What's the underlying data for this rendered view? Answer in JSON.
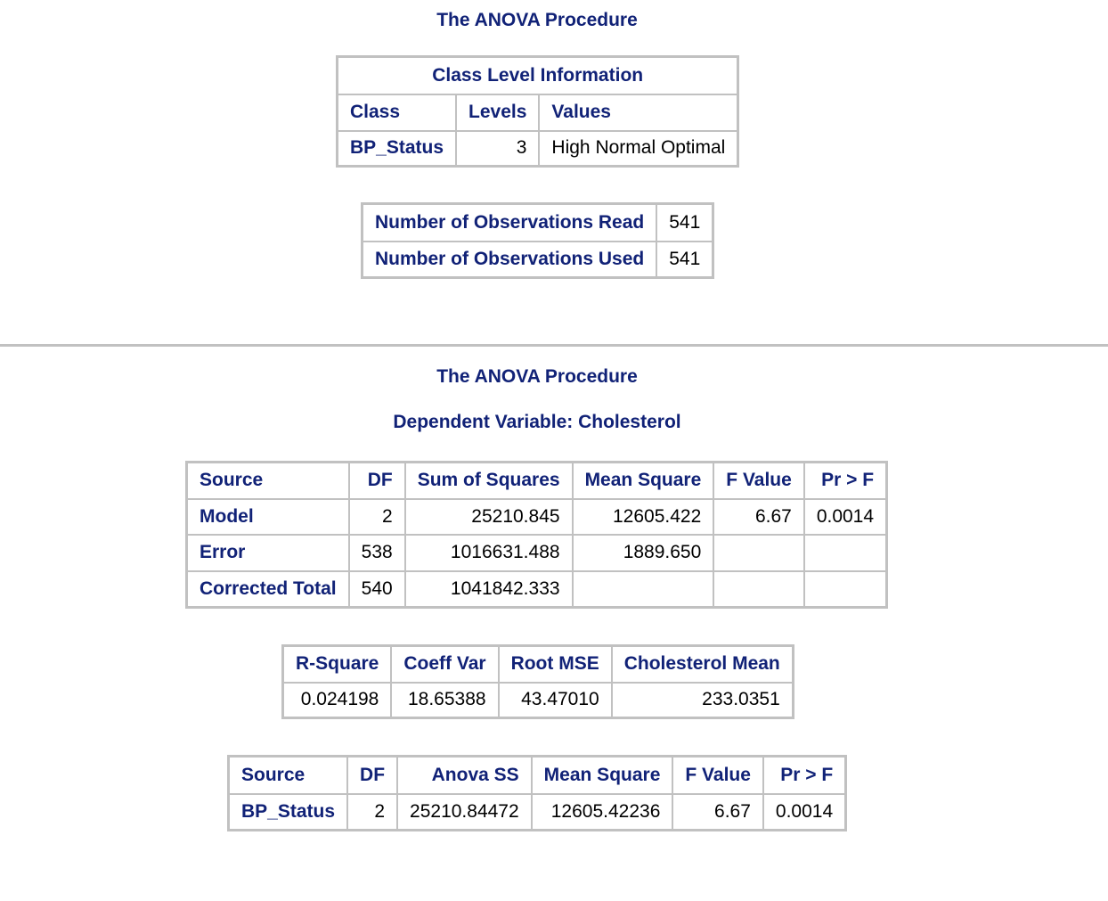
{
  "section1": {
    "title": "The ANOVA Procedure",
    "class_table": {
      "caption": "Class Level Information",
      "headers": [
        "Class",
        "Levels",
        "Values"
      ],
      "row": {
        "class": "BP_Status",
        "levels": "3",
        "values": "High Normal Optimal"
      }
    },
    "obs_table": {
      "rows": [
        {
          "label": "Number of Observations Read",
          "value": "541"
        },
        {
          "label": "Number of Observations Used",
          "value": "541"
        }
      ]
    }
  },
  "section2": {
    "title": "The ANOVA Procedure",
    "subtitle": "Dependent Variable: Cholesterol",
    "anova_table": {
      "headers": [
        "Source",
        "DF",
        "Sum of Squares",
        "Mean Square",
        "F Value",
        "Pr > F"
      ],
      "rows": [
        {
          "source": "Model",
          "df": "2",
          "ss": "25210.845",
          "ms": "12605.422",
          "f": "6.67",
          "p": "0.0014"
        },
        {
          "source": "Error",
          "df": "538",
          "ss": "1016631.488",
          "ms": "1889.650",
          "f": "",
          "p": ""
        },
        {
          "source": "Corrected Total",
          "df": "540",
          "ss": "1041842.333",
          "ms": "",
          "f": "",
          "p": ""
        }
      ]
    },
    "fit_table": {
      "headers": [
        "R-Square",
        "Coeff Var",
        "Root MSE",
        "Cholesterol Mean"
      ],
      "values": [
        "0.024198",
        "18.65388",
        "43.47010",
        "233.0351"
      ]
    },
    "effect_table": {
      "headers": [
        "Source",
        "DF",
        "Anova SS",
        "Mean Square",
        "F Value",
        "Pr > F"
      ],
      "row": {
        "source": "BP_Status",
        "df": "2",
        "ss": "25210.84472",
        "ms": "12605.42236",
        "f": "6.67",
        "p": "0.0014"
      }
    }
  }
}
